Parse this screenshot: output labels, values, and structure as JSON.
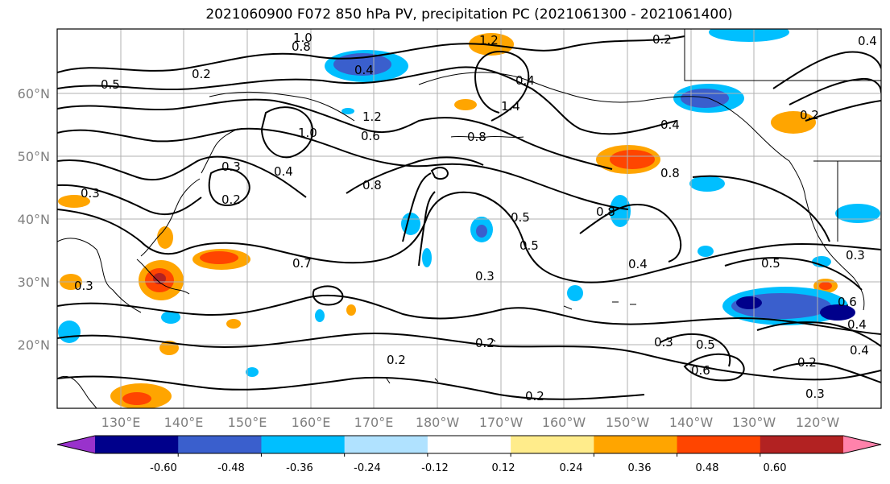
{
  "title": "2021060900 F072 850 hPa PV, precipitation PC (2021061300 - 2021061400)",
  "lat_labels": [
    "60°N",
    "50°N",
    "40°N",
    "30°N",
    "20°N"
  ],
  "lon_labels": [
    "130°E",
    "140°E",
    "150°E",
    "160°E",
    "170°E",
    "180°W",
    "170°W",
    "160°W",
    "150°W",
    "140°W",
    "130°W",
    "120°W"
  ],
  "colorbar": {
    "tick_labels": [
      "-0.60",
      "-0.48",
      "-0.36",
      "-0.24",
      "-0.12",
      "0.12",
      "0.24",
      "0.36",
      "0.48",
      "0.60"
    ],
    "colors": [
      "#9932cc",
      "#00008b",
      "#3a5fcd",
      "#00bfff",
      "#b0e2ff",
      "#ffffff",
      "#ffec8b",
      "#ffa500",
      "#ff4500",
      "#b22222",
      "#ff82ab"
    ]
  },
  "contour_labels": [
    {
      "text": "1.0"
    },
    {
      "text": "0.8"
    },
    {
      "text": "1.2"
    },
    {
      "text": "0.2"
    },
    {
      "text": "0.4"
    },
    {
      "text": "0.2"
    },
    {
      "text": "0.4"
    },
    {
      "text": "0.5"
    },
    {
      "text": "0.4"
    },
    {
      "text": "1.2"
    },
    {
      "text": "1.4"
    },
    {
      "text": "1.0"
    },
    {
      "text": "0.6"
    },
    {
      "text": "0.8"
    },
    {
      "text": "0.4"
    },
    {
      "text": "0.2"
    },
    {
      "text": "0.3"
    },
    {
      "text": "0.4"
    },
    {
      "text": "0.2"
    },
    {
      "text": "0.8"
    },
    {
      "text": "0.8"
    },
    {
      "text": "0.3"
    },
    {
      "text": "0.5"
    },
    {
      "text": "0.5"
    },
    {
      "text": "0.8"
    },
    {
      "text": "0.4"
    },
    {
      "text": "0.7"
    },
    {
      "text": "0.3"
    },
    {
      "text": "0.5"
    },
    {
      "text": "0.2"
    },
    {
      "text": "0.2"
    },
    {
      "text": "0.3"
    },
    {
      "text": "0.5"
    },
    {
      "text": "0.6"
    },
    {
      "text": "0.2"
    },
    {
      "text": "0.3"
    },
    {
      "text": "0.4"
    },
    {
      "text": "0.3"
    },
    {
      "text": "0.4"
    },
    {
      "text": "0.2"
    },
    {
      "text": "0.6"
    },
    {
      "text": "0.3"
    }
  ]
}
